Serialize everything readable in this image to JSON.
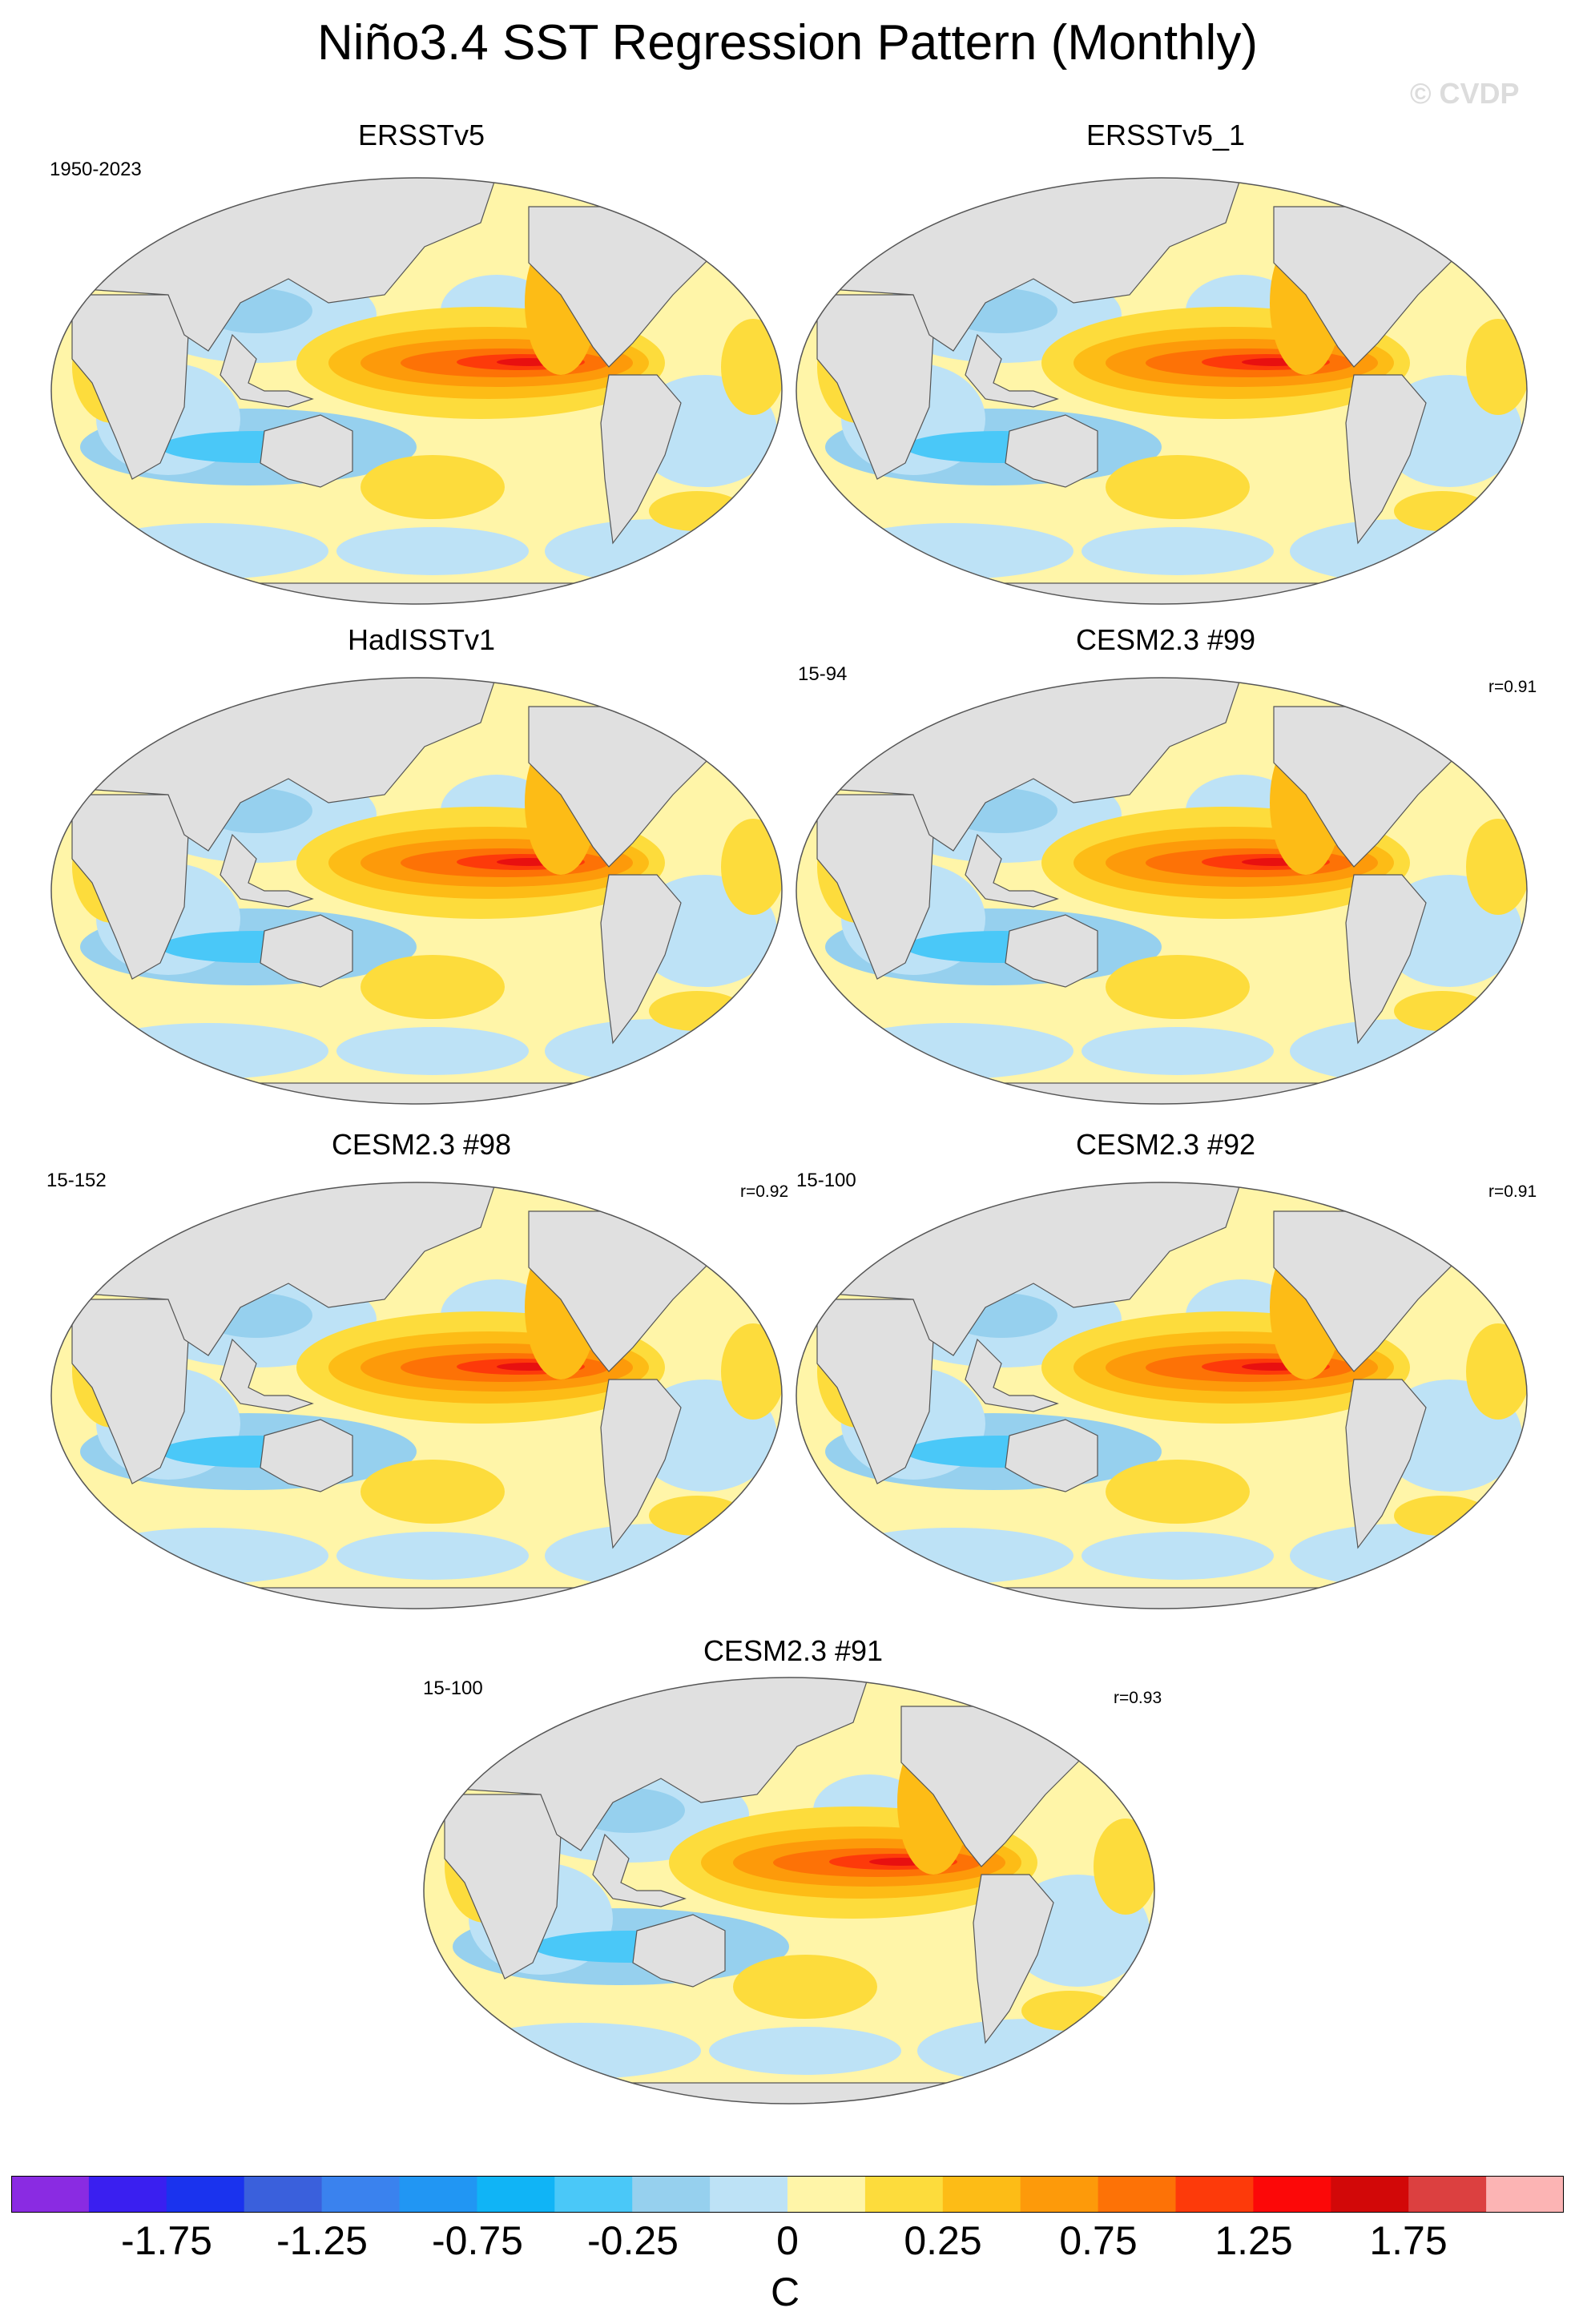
{
  "figure": {
    "title": "Niño3.4 SST Regression Pattern (Monthly)",
    "watermark": "© CVDP"
  },
  "panels": [
    {
      "title": "ERSSTv5",
      "years": "1950-2023",
      "r": ""
    },
    {
      "title": "ERSSTv5_1",
      "years": "",
      "r": ""
    },
    {
      "title": "HadISSTv1",
      "years": "",
      "r": ""
    },
    {
      "title": "CESM2.3 #99",
      "years": "15-94",
      "r": "r=0.91"
    },
    {
      "title": "CESM2.3 #98",
      "years": "15-152",
      "r": "r=0.92"
    },
    {
      "title": "CESM2.3 #92",
      "years": "15-100",
      "r": "r=0.91"
    },
    {
      "title": "CESM2.3 #91",
      "years": "15-100",
      "r": "r=0.93"
    }
  ],
  "colorbar": {
    "units": "C",
    "labels": [
      "-1.75",
      "-1.25",
      "-0.75",
      "-0.25",
      "0",
      "0.25",
      "0.75",
      "1.25",
      "1.75"
    ],
    "colors": [
      "#8a2be2",
      "#3a1ff0",
      "#1a33ee",
      "#3a60dc",
      "#3a82ee",
      "#2196f3",
      "#10b4f6",
      "#4ac8f8",
      "#96d0ee",
      "#bde2f6",
      "#fff5a8",
      "#fddc3c",
      "#fdbc16",
      "#fd9a0a",
      "#fd7206",
      "#fd3a0a",
      "#fc0808",
      "#d20808",
      "#dc4040",
      "#fcb4b4"
    ]
  },
  "palette": {
    "land": "#e0e0e0",
    "neutral_warm": "#fff5a8",
    "weak_warm": "#fddc3c",
    "warm": "#fdbc16",
    "warmer": "#fd9a0a",
    "hot": "#fd7206",
    "hotter": "#fd3a0a",
    "peak": "#e81010",
    "neutral_cool": "#bde2f6",
    "cool": "#96d0ee",
    "cooler": "#4ac8f8"
  }
}
